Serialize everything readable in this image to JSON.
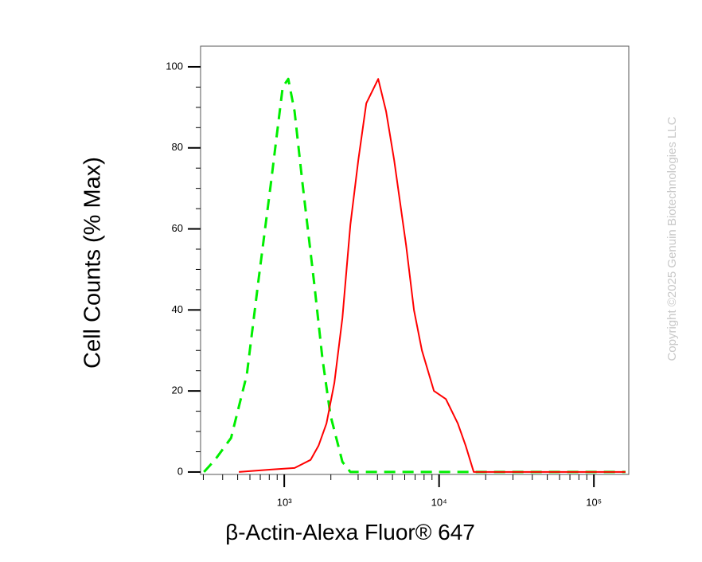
{
  "chart_data": {
    "type": "line",
    "x_label": "β-Actin-Alexa Fluor® 647",
    "y_label": "Cell Counts (% Max)",
    "watermark": "Copyright ©2025 Genuin Biotechnologies LLC",
    "xscale": "log",
    "xlim": [
      288,
      168000
    ],
    "ylim": [
      -0.6,
      105.1
    ],
    "xticks": [
      {
        "value": 1000,
        "label": "10³"
      },
      {
        "value": 10000,
        "label": "10⁴"
      },
      {
        "value": 100000,
        "label": "10⁵"
      }
    ],
    "xminor_ticks": [
      300,
      400,
      500,
      600,
      700,
      800,
      900,
      2000,
      3000,
      4000,
      5000,
      6000,
      7000,
      8000,
      9000,
      20000,
      30000,
      40000,
      50000,
      60000,
      70000,
      80000,
      90000
    ],
    "yticks": [
      0,
      20,
      40,
      60,
      80,
      100
    ],
    "yminor_ticks": [
      5,
      10,
      15,
      25,
      30,
      35,
      45,
      50,
      55,
      65,
      70,
      75,
      85,
      90,
      95
    ],
    "series": [
      {
        "color": "#00ee00",
        "line_style": "dashed",
        "x": [
          303,
          357,
          453,
          573,
          685,
          818,
          977,
          1061,
          1166,
          1313,
          1567,
          1765,
          1987,
          2373,
          2673,
          160000
        ],
        "values": [
          0,
          3,
          8.4,
          24,
          48,
          71,
          95,
          97,
          89,
          71,
          46,
          28,
          14,
          2.5,
          0,
          0
        ]
      },
      {
        "color": "#ff0000",
        "line_style": "solid",
        "x": [
          509,
          818,
          1166,
          1479,
          1664,
          1873,
          2107,
          2373,
          2673,
          3007,
          3385,
          4045,
          4550,
          5125,
          6120,
          6885,
          7750,
          9265,
          11060,
          13210,
          14860,
          16740,
          160000
        ],
        "values": [
          0,
          0.6,
          1,
          3,
          6.5,
          12,
          22,
          38,
          61,
          77,
          91,
          97,
          89,
          77,
          56,
          40,
          30,
          20,
          18,
          12,
          6.5,
          0,
          0
        ]
      }
    ]
  }
}
